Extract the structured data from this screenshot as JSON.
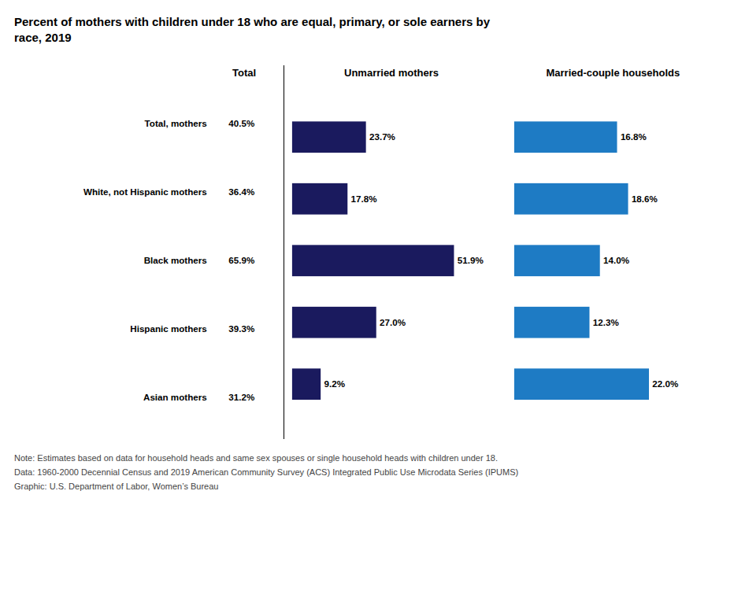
{
  "title": "Percent of mothers with children under 18 who are equal, primary, or sole earners by\nrace, 2019",
  "notes": [
    "Note: Estimates based on data for household heads and same sex spouses or single household heads with children under 18.",
    "Data: 1960-2000 Decennial Census and 2019 American Community Survey (ACS) Integrated Public Use Microdata Series (IPUMS)",
    "Graphic: U.S. Department of Labor, Women’s Bureau"
  ],
  "chart_data": [
    {
      "type": "table",
      "title": "Total",
      "categories": [
        "Total, mothers",
        "White, not Hispanic mothers",
        "Black mothers",
        "Hispanic mothers",
        "Asian mothers"
      ],
      "values": [
        40.5,
        36.4,
        65.9,
        39.3,
        31.2
      ],
      "value_labels": [
        "40.5%",
        "36.4%",
        "65.9%",
        "39.3%",
        "31.2%"
      ],
      "tick_labels": "y"
    },
    {
      "type": "bar",
      "orientation": "horizontal",
      "title": "Unmarried mothers",
      "categories": [
        "Total, mothers",
        "White, not Hispanic mothers",
        "Black mothers",
        "Hispanic mothers",
        "Asian mothers"
      ],
      "values": [
        23.7,
        17.8,
        51.9,
        27.0,
        9.2
      ],
      "value_labels": [
        "23.7%",
        "17.8%",
        "51.9%",
        "27.0%",
        "9.2%"
      ],
      "color": "#1a1a5e",
      "xlim": [
        0,
        55
      ],
      "xticks": [],
      "data_labels": true,
      "tick_labels": false
    },
    {
      "type": "bar",
      "orientation": "horizontal",
      "title": "Married-couple households",
      "categories": [
        "Total, mothers",
        "White, not Hispanic mothers",
        "Black mothers",
        "Hispanic mothers",
        "Asian mothers"
      ],
      "values": [
        16.8,
        18.6,
        14.0,
        12.3,
        22.0
      ],
      "value_labels": [
        "16.8%",
        "18.6%",
        "14.0%",
        "12.3%",
        "22.0%"
      ],
      "color": "#1e7bc4",
      "xlim": [
        0,
        28
      ],
      "xticks": [],
      "data_labels": true,
      "tick_labels": false
    }
  ]
}
